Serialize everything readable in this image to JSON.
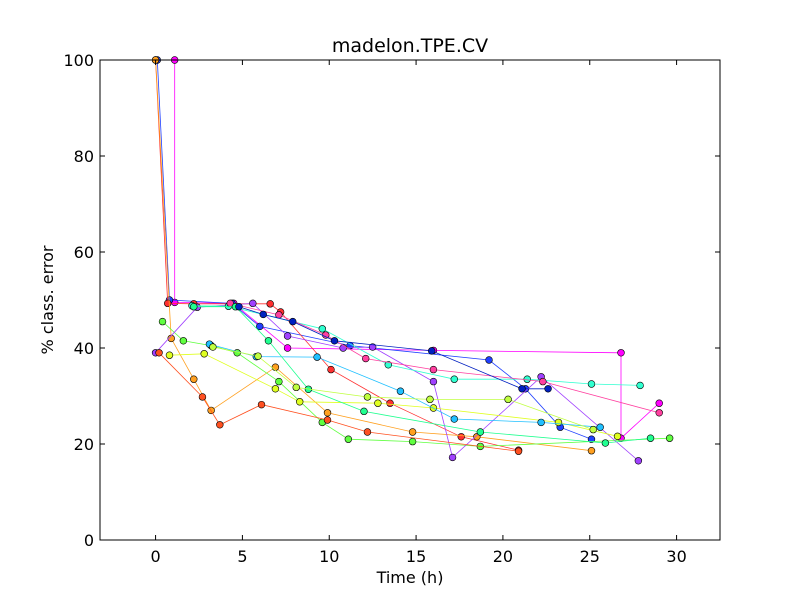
{
  "chart_data": {
    "type": "line",
    "title": "madelon.TPE.CV",
    "xlabel": "Time (h)",
    "ylabel": "% class. error",
    "xlim": [
      -3.2,
      32.5
    ],
    "ylim": [
      0,
      100
    ],
    "xticks": [
      0,
      5,
      10,
      15,
      20,
      25,
      30
    ],
    "yticks": [
      0,
      20,
      40,
      60,
      80,
      100
    ],
    "grid": false,
    "legend": "none",
    "series": [
      {
        "color": "#ff00ff",
        "points": [
          [
            1.1,
            100
          ],
          [
            1.1,
            49.5
          ],
          [
            4.5,
            49.3
          ],
          [
            7.6,
            40
          ],
          [
            16,
            39.5
          ],
          [
            26.8,
            39
          ],
          [
            26.8,
            21.2
          ],
          [
            29.0,
            28.5
          ]
        ]
      },
      {
        "color": "#2040ff",
        "points": [
          [
            0.1,
            100
          ],
          [
            0.8,
            50
          ],
          [
            4.4,
            49.3
          ],
          [
            6,
            44.5
          ],
          [
            11.2,
            40.5
          ],
          [
            19.2,
            37.5
          ],
          [
            21.3,
            31.5
          ],
          [
            23.3,
            23.5
          ],
          [
            25.1,
            21
          ]
        ]
      },
      {
        "color": "#ff3030",
        "points": [
          [
            0,
            100
          ],
          [
            0.7,
            49.3
          ],
          [
            2.2,
            49.2
          ],
          [
            6.6,
            49.2
          ],
          [
            7.2,
            47.5
          ],
          [
            10.1,
            35.5
          ],
          [
            13.5,
            28.5
          ],
          [
            17.6,
            21.5
          ],
          [
            20.9,
            18.7
          ]
        ]
      },
      {
        "color": "#ffa020",
        "points": [
          [
            0,
            100
          ],
          [
            0.9,
            42
          ],
          [
            2.2,
            33.5
          ],
          [
            3.2,
            27
          ],
          [
            6.9,
            36
          ],
          [
            9.9,
            26.5
          ],
          [
            14.8,
            22.5
          ],
          [
            18.5,
            21.5
          ],
          [
            25.1,
            18.6
          ]
        ]
      },
      {
        "color": "#60ff40",
        "points": [
          [
            0.4,
            45.5
          ],
          [
            1.6,
            41.5
          ],
          [
            3.2,
            40.5
          ],
          [
            4.7,
            39
          ],
          [
            7.1,
            33
          ],
          [
            9.6,
            24.5
          ],
          [
            11.1,
            21
          ],
          [
            14.8,
            20.5
          ],
          [
            18.7,
            19.5
          ],
          [
            29.6,
            21.2
          ]
        ]
      },
      {
        "color": "#a040ff",
        "points": [
          [
            0,
            39
          ],
          [
            2.4,
            48.5
          ],
          [
            5.6,
            49.3
          ],
          [
            7.6,
            42.5
          ],
          [
            10.8,
            40
          ],
          [
            12.5,
            40.2
          ],
          [
            16,
            33
          ],
          [
            17.1,
            17.2
          ],
          [
            22.2,
            34
          ],
          [
            27.8,
            16.5
          ]
        ]
      },
      {
        "color": "#30ffd0",
        "points": [
          [
            2.1,
            48.8
          ],
          [
            4.2,
            48.7
          ],
          [
            9.6,
            44
          ],
          [
            13.4,
            36.5
          ],
          [
            17.2,
            33.5
          ],
          [
            21.4,
            33.5
          ],
          [
            25.1,
            32.5
          ],
          [
            27.9,
            32.2
          ]
        ]
      },
      {
        "color": "#e0ff20",
        "points": [
          [
            0.8,
            38.5
          ],
          [
            2.8,
            38.8
          ],
          [
            6.9,
            31.5
          ],
          [
            8.3,
            28.8
          ],
          [
            12.8,
            28.5
          ],
          [
            16,
            27.5
          ],
          [
            23.2,
            24.5
          ],
          [
            26.6,
            21.6
          ]
        ]
      },
      {
        "color": "#ff5020",
        "points": [
          [
            0.2,
            39
          ],
          [
            2.7,
            29.8
          ],
          [
            3.7,
            24
          ],
          [
            6.1,
            28.2
          ],
          [
            9.9,
            25
          ],
          [
            12.2,
            22.5
          ],
          [
            20.9,
            18.5
          ]
        ]
      },
      {
        "color": "#20c0ff",
        "points": [
          [
            3.1,
            40.8
          ],
          [
            5.8,
            38.2
          ],
          [
            9.3,
            38.1
          ],
          [
            14.1,
            31
          ],
          [
            17.2,
            25.2
          ],
          [
            22.2,
            24.5
          ],
          [
            25.6,
            23.5
          ]
        ]
      },
      {
        "color": "#ff40a0",
        "points": [
          [
            4.3,
            49.3
          ],
          [
            7.1,
            46.9
          ],
          [
            9.8,
            42.7
          ],
          [
            12.1,
            37.8
          ],
          [
            16,
            35.5
          ],
          [
            22.3,
            33
          ],
          [
            29,
            26.5
          ]
        ]
      },
      {
        "color": "#20ff90",
        "points": [
          [
            2.2,
            48.6
          ],
          [
            4.6,
            48.6
          ],
          [
            6.5,
            41.5
          ],
          [
            8.8,
            31.4
          ],
          [
            12,
            26.8
          ],
          [
            18.7,
            22.5
          ],
          [
            25.9,
            20.2
          ],
          [
            28.5,
            21.2
          ]
        ]
      },
      {
        "color": "#0020c0",
        "points": [
          [
            4.8,
            48.6
          ],
          [
            6.2,
            47
          ],
          [
            7.9,
            45.5
          ],
          [
            10.3,
            41.5
          ],
          [
            15.9,
            39.4
          ],
          [
            21.1,
            31.5
          ],
          [
            22.6,
            31.5
          ]
        ]
      },
      {
        "color": "#c0ff40",
        "points": [
          [
            3.3,
            40.2
          ],
          [
            5.9,
            38.3
          ],
          [
            8.1,
            31.8
          ],
          [
            12.2,
            29.8
          ],
          [
            15.8,
            29.3
          ],
          [
            20.3,
            29.3
          ],
          [
            25.2,
            23
          ]
        ]
      }
    ]
  }
}
